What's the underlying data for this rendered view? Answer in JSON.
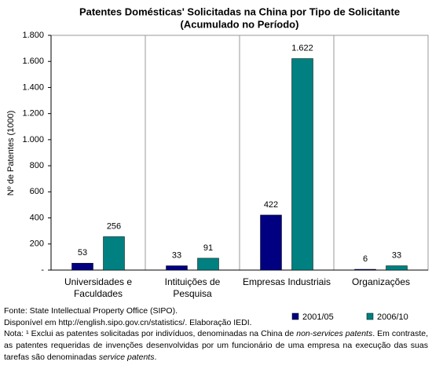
{
  "chart_data": {
    "type": "bar",
    "title": "Patentes Domésticas' Solicitadas na China por Tipo de Solicitante",
    "subtitle": "(Acumulado no Período)",
    "y_label": "Nº de Patentes (1000)",
    "categories": [
      "Universidades e Faculdades",
      "Intituições de Pesquisa",
      "Empresas Industriais",
      "Organizações"
    ],
    "series": [
      {
        "name": "2001/05",
        "color": "#000080",
        "values": [
          53,
          33,
          422,
          6
        ]
      },
      {
        "name": "2006/10",
        "color": "#008080",
        "values": [
          256,
          91,
          1622,
          33
        ],
        "value_labels": [
          "256",
          "91",
          "1.622",
          "33"
        ]
      }
    ],
    "ylim": [
      0,
      1800
    ],
    "yticks": [
      {
        "value": 0,
        "label": "-"
      },
      200,
      400,
      600,
      800,
      {
        "value": 1000,
        "label": "1.000"
      },
      {
        "value": 1200,
        "label": "1.200"
      },
      {
        "value": 1400,
        "label": "1.400"
      },
      {
        "value": 1600,
        "label": "1.600"
      },
      {
        "value": 1800,
        "label": "1.800"
      }
    ],
    "legend": "bottom-right"
  },
  "footer": {
    "source": "Fonte: State Intellectual Property Office (SIPO).",
    "available": "Disponível em http://english.sipo.gov.cn/statistics/. Elaboração IEDI.",
    "note": [
      "Nota: ¹ Exclui as patentes solicitadas por indivíduos, denominadas na China de ",
      "non-services patents",
      ". Em contraste, as patentes requeridas de invenções desenvolvidas por um funcionário de uma empresa na execução das suas tarefas são denominadas ",
      "service patents",
      "."
    ]
  }
}
